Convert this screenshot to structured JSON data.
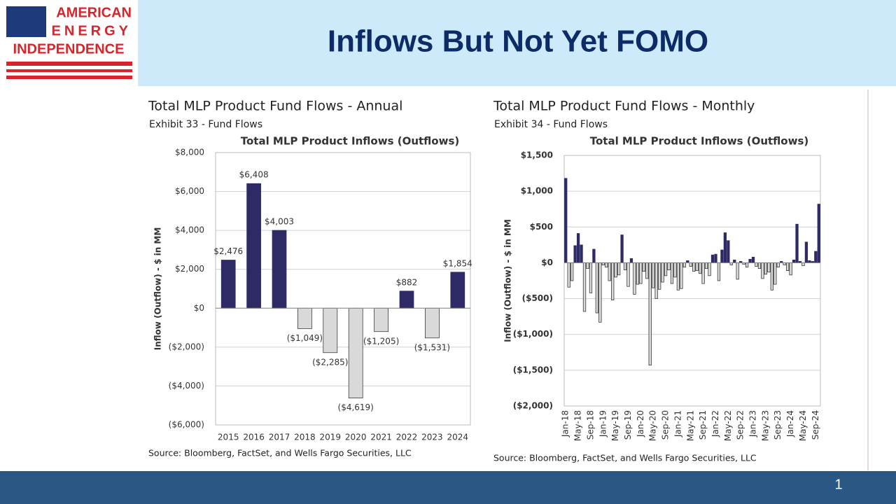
{
  "header": {
    "logo": [
      "AMERICAN",
      "ENERGY",
      "INDEPENDENCE"
    ],
    "title": "Inflows But Not Yet FOMO"
  },
  "chart_data": [
    {
      "type": "bar",
      "heading": "Total MLP Product Fund Flows - Annual",
      "subtitle": "Exhibit 33 - Fund Flows",
      "title": "Total MLP Product Inflows (Outflows)",
      "ylabel": "Inflow (Outflow) - $ in MM",
      "source": "Source: Bloomberg, FactSet, and Wells Fargo Securities, LLC",
      "categories": [
        "2015",
        "2016",
        "2017",
        "2018",
        "2019",
        "2020",
        "2021",
        "2022",
        "2023",
        "2024"
      ],
      "values": [
        2476,
        6408,
        4003,
        -1049,
        -2285,
        -4619,
        -1205,
        882,
        -1531,
        1854
      ],
      "value_labels": [
        "$2,476",
        "$6,408",
        "$4,003",
        "($1,049)",
        "($2,285)",
        "($4,619)",
        "($1,205)",
        "$882",
        "($1,531)",
        "$1,854"
      ],
      "color": "#2e2a66",
      "negative_color": "#d9d9d9",
      "ylim": [
        -6000,
        8000
      ],
      "yticks": [
        {
          "value": -6000,
          "label": "($6,000)"
        },
        {
          "value": -4000,
          "label": "($4,000)"
        },
        {
          "value": -2000,
          "label": "($2,000)"
        },
        {
          "value": 0,
          "label": "$0"
        },
        {
          "value": 2000,
          "label": "$2,000"
        },
        {
          "value": 4000,
          "label": "$4,000"
        },
        {
          "value": 6000,
          "label": "$6,000"
        },
        {
          "value": 8000,
          "label": "$8,000"
        }
      ],
      "grid": true
    },
    {
      "type": "bar",
      "heading": "Total MLP Product Fund Flows - Monthly",
      "subtitle": "Exhibit 34 - Fund Flows",
      "title": "Total MLP Product Inflows (Outflows)",
      "ylabel": "Inflow (Outflow) - $ in MM",
      "source": "Source: Bloomberg, FactSet, and Wells Fargo Securities, LLC",
      "categories": [
        "Jan-18",
        null,
        null,
        null,
        "May-18",
        null,
        null,
        null,
        "Sep-18",
        null,
        null,
        null,
        "Jan-19",
        null,
        null,
        null,
        "May-19",
        null,
        null,
        null,
        "Sep-19",
        null,
        null,
        null,
        "Jan-20",
        null,
        null,
        null,
        "May-20",
        null,
        null,
        null,
        "Sep-20",
        null,
        null,
        null,
        "Jan-21",
        null,
        null,
        null,
        "May-21",
        null,
        null,
        null,
        "Sep-21",
        null,
        null,
        null,
        "Jan-22",
        null,
        null,
        null,
        "May-22",
        null,
        null,
        null,
        "Sep-22",
        null,
        null,
        null,
        "Jan-23",
        null,
        null,
        null,
        "May-23",
        null,
        null,
        null,
        "Sep-23",
        null,
        null,
        null,
        "Jan-24",
        null,
        null,
        null,
        "May-24",
        null,
        null,
        null,
        "Sep-24",
        null
      ],
      "values": [
        1180,
        -340,
        -250,
        240,
        410,
        250,
        -680,
        -80,
        -420,
        190,
        -700,
        -830,
        -30,
        -60,
        -250,
        -520,
        -200,
        -170,
        390,
        -100,
        -330,
        60,
        -440,
        -300,
        -290,
        -120,
        -220,
        -1430,
        -350,
        -500,
        -370,
        -270,
        -180,
        -100,
        -290,
        -200,
        -380,
        -360,
        -60,
        30,
        -50,
        -120,
        -110,
        -150,
        -290,
        -80,
        -180,
        110,
        120,
        -250,
        180,
        420,
        310,
        -30,
        40,
        -230,
        20,
        -20,
        -60,
        50,
        80,
        -50,
        -80,
        -220,
        -160,
        -130,
        -380,
        -300,
        -60,
        20,
        -30,
        -110,
        -170,
        40,
        540,
        20,
        -40,
        290,
        30,
        20,
        160,
        820
      ],
      "color": "#2e2a66",
      "negative_color": "#d9d9d9",
      "ylim": [
        -2000,
        1500
      ],
      "yticks": [
        {
          "value": -2000,
          "label": "($2,000)"
        },
        {
          "value": -1500,
          "label": "($1,500)"
        },
        {
          "value": -1000,
          "label": "($1,000)"
        },
        {
          "value": -500,
          "label": "($500)"
        },
        {
          "value": 0,
          "label": "$0"
        },
        {
          "value": 500,
          "label": "$500"
        },
        {
          "value": 1000,
          "label": "$1,000"
        },
        {
          "value": 1500,
          "label": "$1,500"
        }
      ],
      "grid": true
    }
  ],
  "footer": {
    "page_number": "1"
  }
}
